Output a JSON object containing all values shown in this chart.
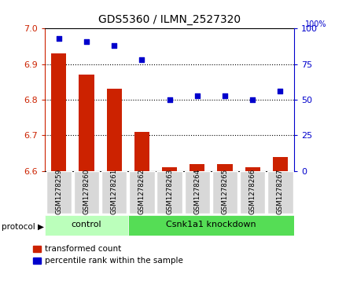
{
  "title": "GDS5360 / ILMN_2527320",
  "samples": [
    "GSM1278259",
    "GSM1278260",
    "GSM1278261",
    "GSM1278262",
    "GSM1278263",
    "GSM1278264",
    "GSM1278265",
    "GSM1278266",
    "GSM1278267"
  ],
  "bar_values": [
    6.93,
    6.87,
    6.83,
    6.71,
    6.61,
    6.62,
    6.62,
    6.61,
    6.64
  ],
  "dot_values": [
    93,
    91,
    88,
    78,
    50,
    53,
    53,
    50,
    56
  ],
  "bar_color": "#cc2200",
  "dot_color": "#0000cc",
  "ylim_left": [
    6.6,
    7.0
  ],
  "ylim_right": [
    0,
    100
  ],
  "yticks_left": [
    6.6,
    6.7,
    6.8,
    6.9,
    7.0
  ],
  "yticks_right": [
    0,
    25,
    50,
    75,
    100
  ],
  "bar_baseline": 6.6,
  "legend_bar": "transformed count",
  "legend_dot": "percentile rank within the sample",
  "bar_color_label": "#cc2200",
  "dot_color_label": "#0000cc",
  "grid_yticks": [
    6.7,
    6.8,
    6.9
  ],
  "grid_color": "black",
  "grid_lw": 0.8,
  "ctrl_color": "#bbffbb",
  "kd_color": "#55dd55",
  "gray_box": "#d8d8d8"
}
